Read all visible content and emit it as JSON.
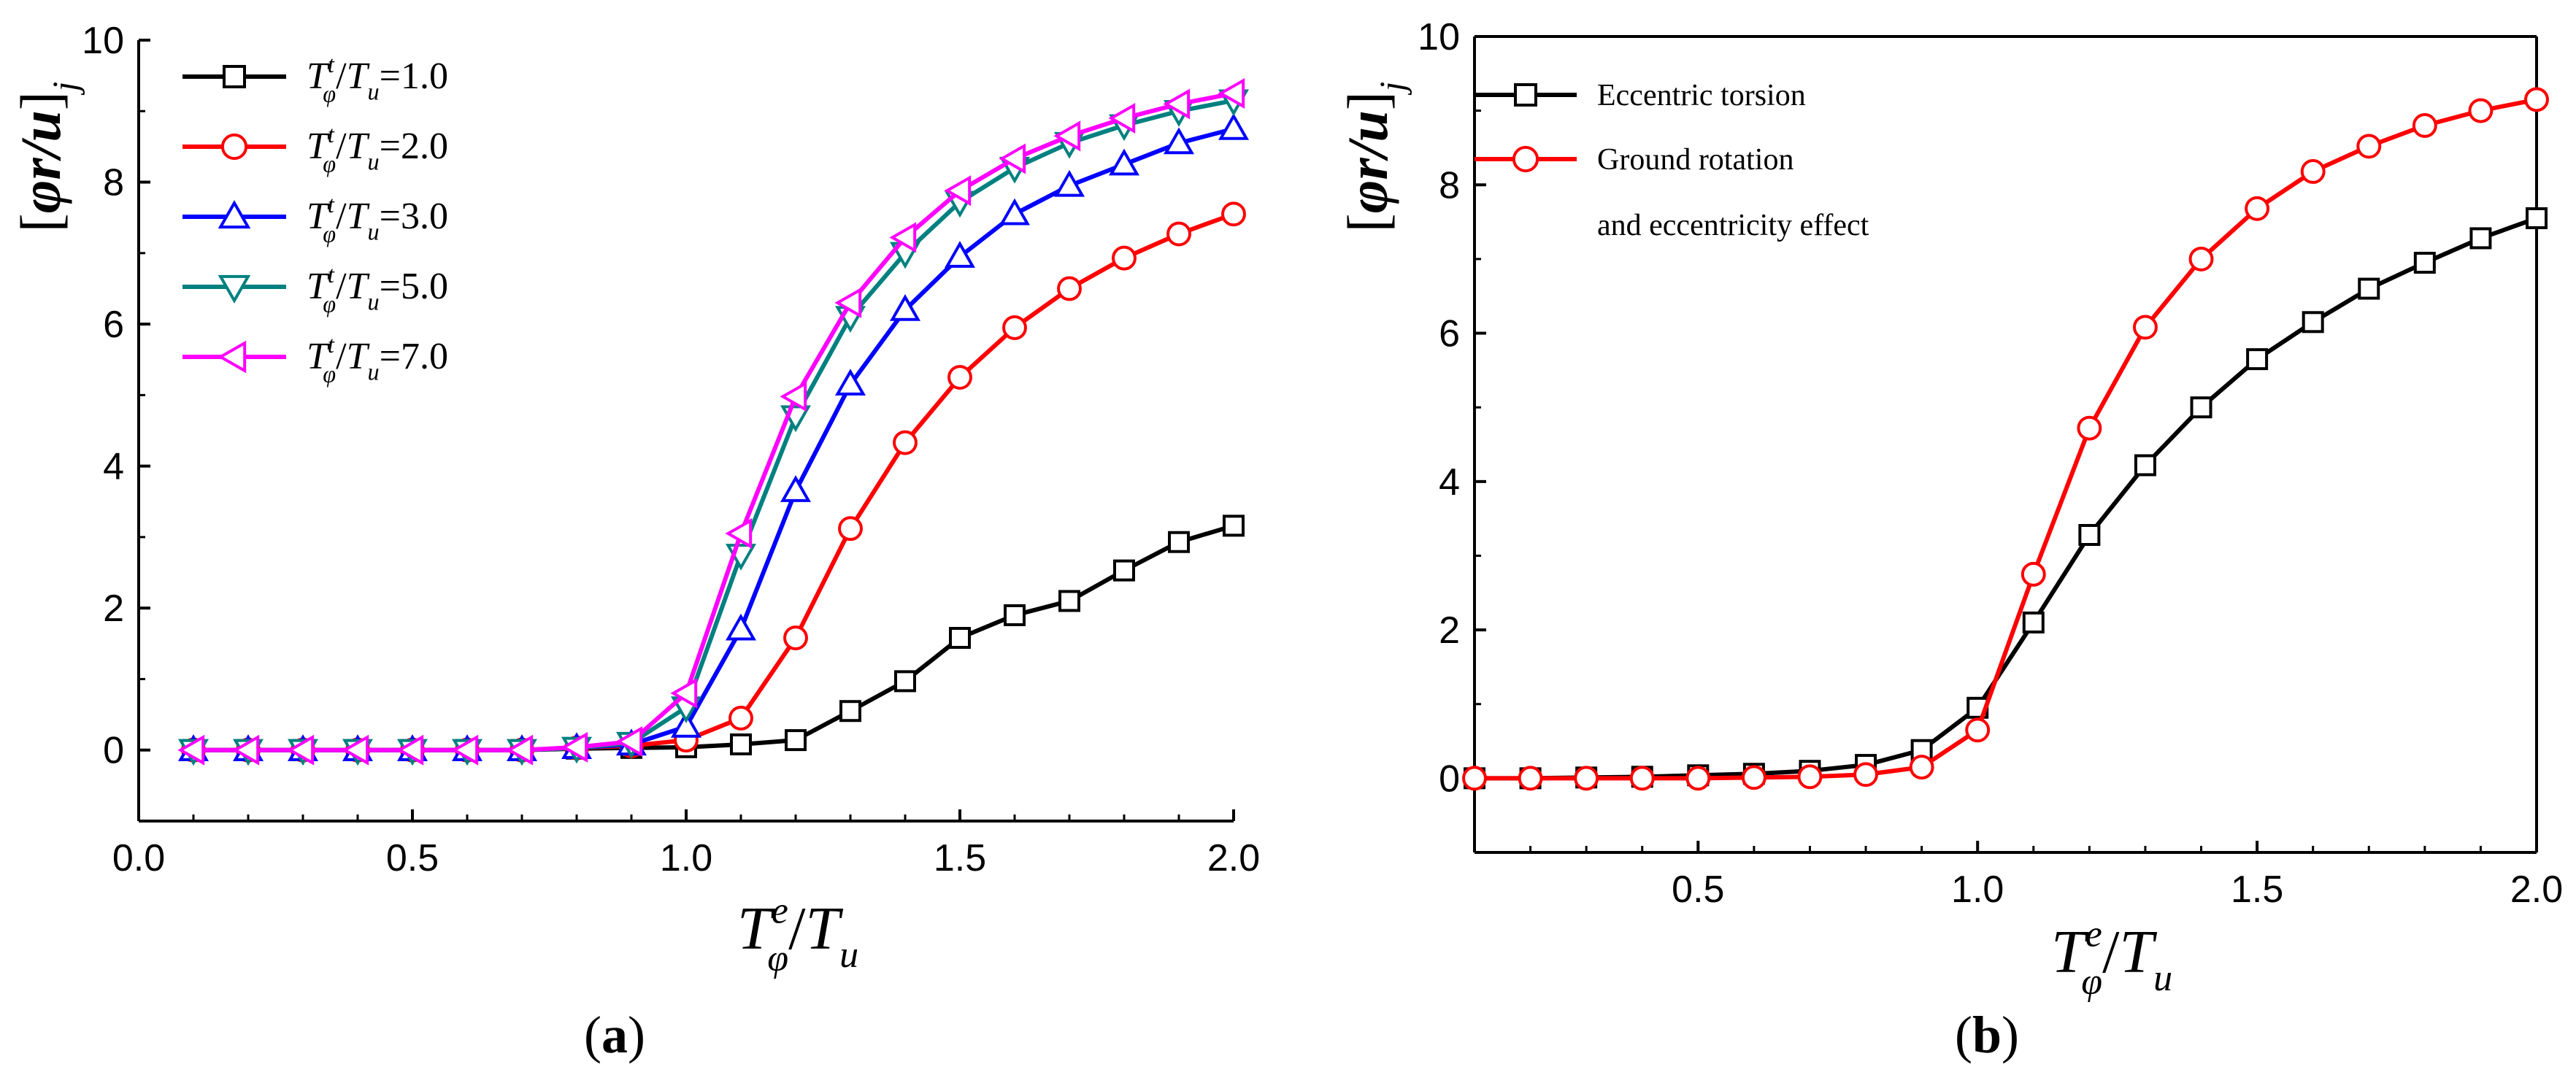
{
  "chart_data": [
    {
      "id": "a",
      "type": "line",
      "caption_letter": "a",
      "xlabel": {
        "base1": "T",
        "sub1": "φ",
        "sup1": "e",
        "slash": "/",
        "base2": "T",
        "sub2": "u"
      },
      "ylabel": {
        "open": "[",
        "body": "φr/u",
        "close": "]",
        "sub": "j"
      },
      "xlim": [
        0.0,
        2.0
      ],
      "ylim": [
        -1,
        10
      ],
      "xticks": [
        0.0,
        0.5,
        1.0,
        1.5,
        2.0
      ],
      "xtick_labels": [
        "0.0",
        "0.5",
        "1.0",
        "1.5",
        "2.0"
      ],
      "yticks": [
        0,
        2,
        4,
        6,
        8,
        10
      ],
      "ytick_labels": [
        "0",
        "2",
        "4",
        "6",
        "8",
        "10"
      ],
      "legend_position": "top-left",
      "x": [
        0.1,
        0.2,
        0.3,
        0.4,
        0.5,
        0.6,
        0.7,
        0.8,
        0.9,
        1.0,
        1.1,
        1.2,
        1.3,
        1.4,
        1.5,
        1.6,
        1.7,
        1.8,
        1.9,
        2.0
      ],
      "series": [
        {
          "name": "T_φ^t/T_u=1.0",
          "label": {
            "base1": "T",
            "sub1": "φ",
            "sup1": "t",
            "slash": "/",
            "base2": "T",
            "sub2": "u",
            "value": "=1.0"
          },
          "color": "#000000",
          "marker": "square",
          "values": [
            0,
            0,
            0,
            0,
            0,
            0,
            0,
            0.02,
            0.03,
            0.04,
            0.08,
            0.14,
            0.55,
            0.97,
            1.58,
            1.9,
            2.1,
            2.53,
            2.93,
            3.16
          ]
        },
        {
          "name": "T_φ^t/T_u=2.0",
          "label": {
            "base1": "T",
            "sub1": "φ",
            "sup1": "t",
            "slash": "/",
            "base2": "T",
            "sub2": "u",
            "value": "=2.0"
          },
          "color": "#ff0000",
          "marker": "circle",
          "values": [
            0,
            0,
            0,
            0,
            0,
            0,
            0,
            0.03,
            0.06,
            0.14,
            0.45,
            1.58,
            3.12,
            4.33,
            5.25,
            5.95,
            6.5,
            6.93,
            7.27,
            7.55
          ]
        },
        {
          "name": "T_φ^t/T_u=3.0",
          "label": {
            "base1": "T",
            "sub1": "φ",
            "sup1": "t",
            "slash": "/",
            "base2": "T",
            "sub2": "u",
            "value": "=3.0"
          },
          "color": "#0000ff",
          "marker": "triangle-up",
          "values": [
            0,
            0,
            0,
            0,
            0,
            0,
            0,
            0.03,
            0.08,
            0.33,
            1.7,
            3.65,
            5.15,
            6.2,
            6.95,
            7.55,
            7.95,
            8.25,
            8.55,
            8.75
          ]
        },
        {
          "name": "T_φ^t/T_u=5.0",
          "label": {
            "base1": "T",
            "sub1": "φ",
            "sup1": "t",
            "slash": "/",
            "base2": "T",
            "sub2": "u",
            "value": "=5.0"
          },
          "color": "#008080",
          "marker": "triangle-down",
          "values": [
            0,
            0,
            0,
            0,
            0,
            0,
            0,
            0.03,
            0.1,
            0.6,
            2.75,
            4.7,
            6.1,
            7.0,
            7.72,
            8.2,
            8.55,
            8.8,
            9.0,
            9.15
          ]
        },
        {
          "name": "T_φ^t/T_u=7.0",
          "label": {
            "base1": "T",
            "sub1": "φ",
            "sup1": "t",
            "slash": "/",
            "base2": "T",
            "sub2": "u",
            "value": "=7.0"
          },
          "color": "#ff00ff",
          "marker": "triangle-left",
          "values": [
            0,
            0,
            0,
            0,
            0,
            0,
            0,
            0.04,
            0.12,
            0.8,
            3.05,
            4.98,
            6.3,
            7.22,
            7.88,
            8.33,
            8.65,
            8.9,
            9.1,
            9.25
          ]
        }
      ]
    },
    {
      "id": "b",
      "type": "line",
      "caption_letter": "b",
      "xlabel": {
        "base1": "T",
        "sub1": "φ",
        "sup1": "e",
        "slash": "/",
        "base2": "T",
        "sub2": "u"
      },
      "ylabel": {
        "open": "[",
        "body": "φr/u",
        "close": "]",
        "sub": "j"
      },
      "xlim": [
        0.1,
        2.0
      ],
      "ylim": [
        -1,
        10
      ],
      "xticks": [
        0.5,
        1.0,
        1.5,
        2.0
      ],
      "xtick_labels": [
        "0.5",
        "1.0",
        "1.5",
        "2.0"
      ],
      "yticks": [
        0,
        2,
        4,
        6,
        8,
        10
      ],
      "ytick_labels": [
        "0",
        "2",
        "4",
        "6",
        "8",
        "10"
      ],
      "legend_position": "top-left",
      "x": [
        0.1,
        0.2,
        0.3,
        0.4,
        0.5,
        0.6,
        0.7,
        0.8,
        0.9,
        1.0,
        1.1,
        1.2,
        1.3,
        1.4,
        1.5,
        1.6,
        1.7,
        1.8,
        1.9,
        2.0
      ],
      "series": [
        {
          "name": "Eccentric torsion",
          "label_lines": [
            "Eccentric torsion"
          ],
          "color": "#000000",
          "marker": "square",
          "values": [
            0,
            0,
            0.01,
            0.02,
            0.04,
            0.06,
            0.1,
            0.18,
            0.38,
            0.95,
            2.1,
            3.28,
            4.22,
            5.0,
            5.65,
            6.15,
            6.6,
            6.95,
            7.28,
            7.55
          ]
        },
        {
          "name": "Ground rotation and eccentricity effect",
          "label_lines": [
            "Ground rotation",
            "and eccentricity effect"
          ],
          "color": "#ff0000",
          "marker": "circle",
          "values": [
            0,
            0,
            0,
            0,
            0,
            0.01,
            0.02,
            0.05,
            0.15,
            0.65,
            2.75,
            4.72,
            6.08,
            7.0,
            7.68,
            8.18,
            8.52,
            8.8,
            9.0,
            9.15
          ]
        }
      ]
    }
  ]
}
